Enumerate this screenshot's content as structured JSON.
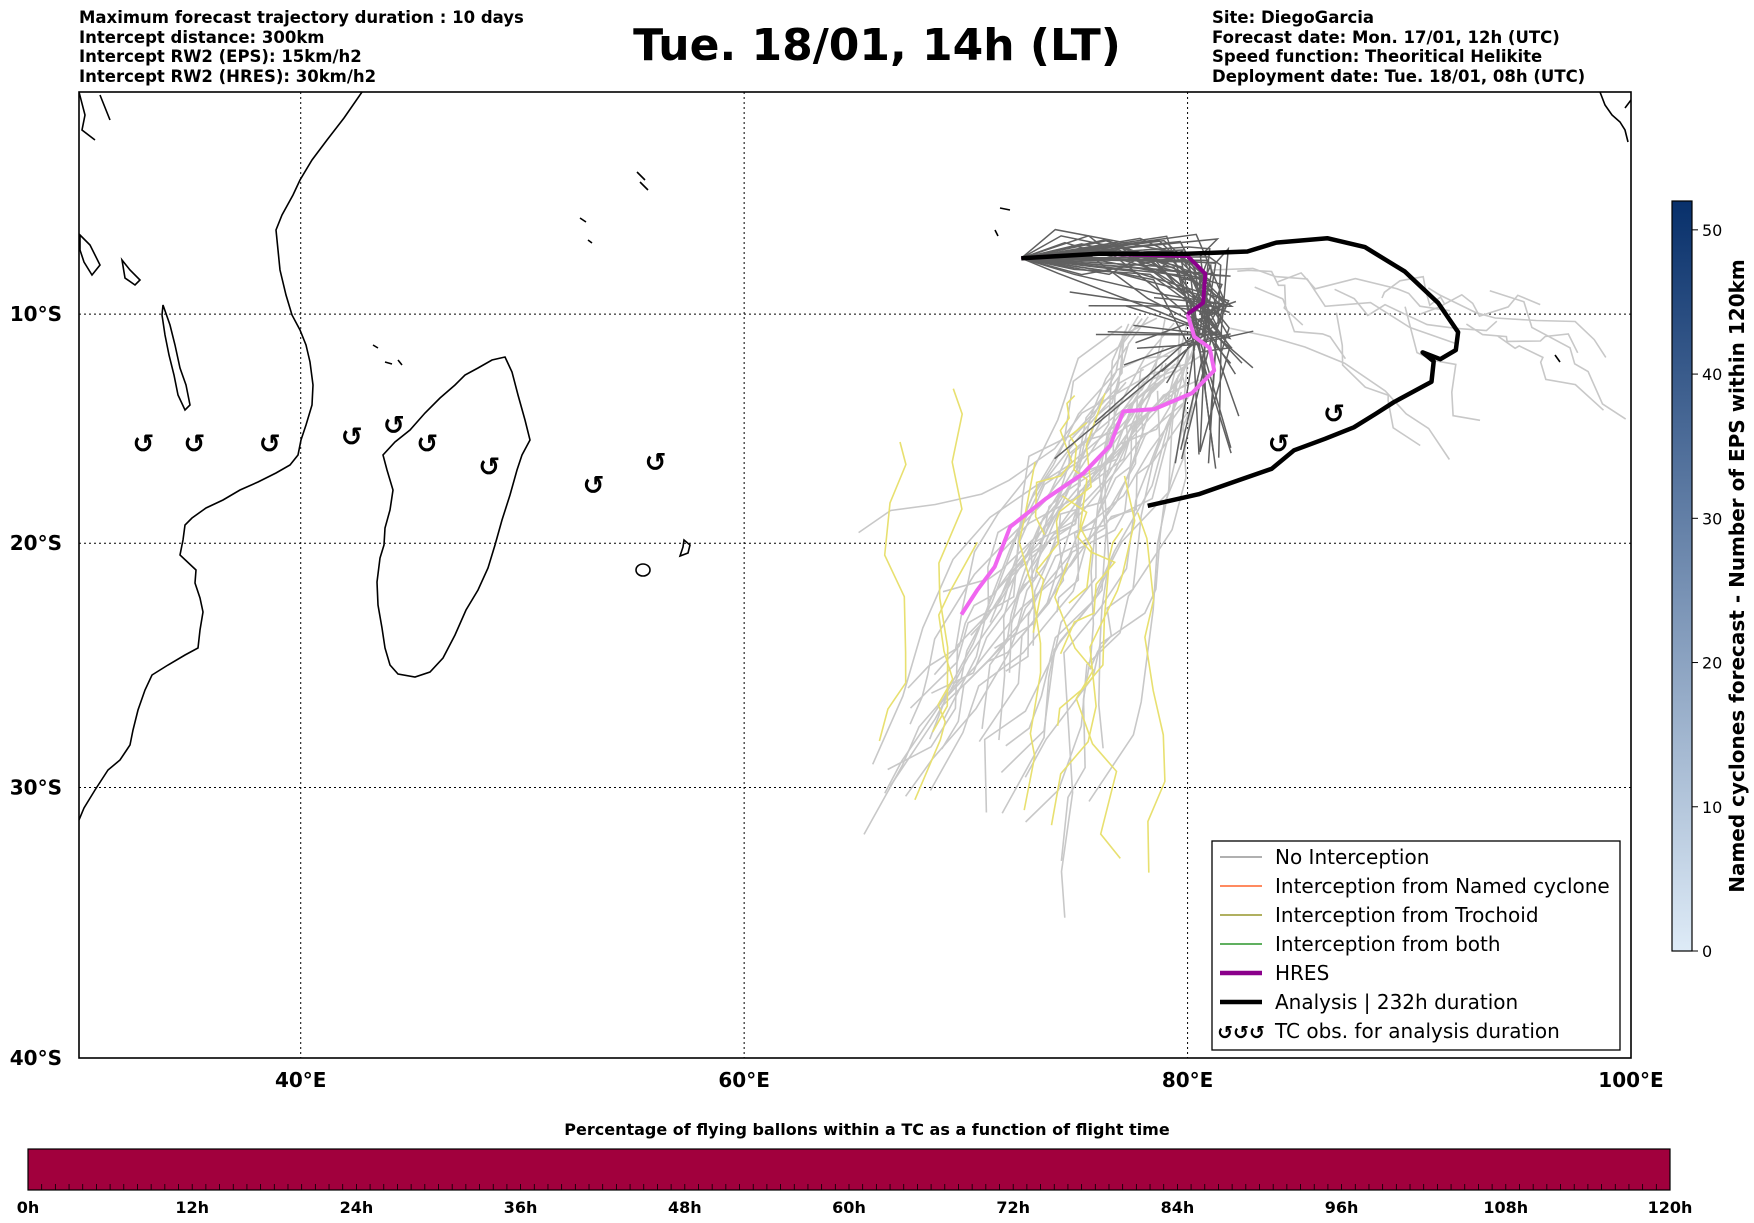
{
  "header_left": [
    "Maximum forecast trajectory duration : 10 days",
    "Intercept distance: 300km",
    "Intercept RW2 (EPS):  15km/h2",
    "Intercept RW2 (HRES): 30km/h2"
  ],
  "title": "Tue. 18/01, 14h (LT)",
  "header_right": [
    "Site: DiegoGarcia",
    "Forecast date: Mon. 17/01, 12h (UTC)",
    "Speed function: Theoritical Helikite",
    "Deployment date: Tue. 18/01, 08h (UTC)"
  ],
  "map": {
    "lon_range": [
      30,
      100
    ],
    "lat_range": [
      -40,
      0
    ],
    "lon_ticks": [
      "40°E",
      "60°E",
      "80°E",
      "100°E"
    ],
    "lat_ticks": [
      "10°S",
      "20°S",
      "30°S",
      "40°S"
    ]
  },
  "legend": [
    {
      "label": "No Interception",
      "color": "#808080",
      "style": "thin"
    },
    {
      "label": "Interception from Named cyclone",
      "color": "#ff4500",
      "style": "thin"
    },
    {
      "label": "Interception from Trochoid",
      "color": "#808000",
      "style": "thin"
    },
    {
      "label": "Interception from both",
      "color": "#008000",
      "style": "thin"
    },
    {
      "label": "HRES",
      "color": "#8b008b",
      "style": "thick"
    },
    {
      "label": "Analysis | 232h duration",
      "color": "#000000",
      "style": "thick"
    },
    {
      "label": "TC obs. for analysis duration",
      "color": "#000000",
      "style": "symbol",
      "symbol": "↺↺↺"
    }
  ],
  "colorbar_right": {
    "label": "Named cyclones forecast - Number of EPS within 120km",
    "ticks": [
      "0",
      "10",
      "20",
      "30",
      "40",
      "50"
    ],
    "max": 52,
    "colors": [
      "#deebf7",
      "#08306b"
    ]
  },
  "time_bar": {
    "title": "Percentage of flying ballons within a TC as a function of flight time",
    "ticks": [
      "0h",
      "12h",
      "24h",
      "36h",
      "48h",
      "60h",
      "72h",
      "84h",
      "96h",
      "108h",
      "120h"
    ],
    "color": "#a1003d"
  },
  "tracks": {
    "hres": [
      [
        72.5,
        -7.5
      ],
      [
        76,
        -7.3
      ],
      [
        80,
        -7.4
      ],
      [
        80.8,
        -8.2
      ],
      [
        80.7,
        -9.5
      ],
      [
        80.0,
        -10.0
      ],
      [
        80.3,
        -11.0
      ],
      [
        81.0,
        -11.5
      ],
      [
        81.2,
        -12.5
      ],
      [
        80.2,
        -13.5
      ],
      [
        78.5,
        -14.2
      ],
      [
        77.1,
        -14.3
      ],
      [
        76.5,
        -15.8
      ],
      [
        75.3,
        -17.0
      ],
      [
        73.6,
        -18.1
      ],
      [
        72.0,
        -19.3
      ],
      [
        71.3,
        -21.0
      ],
      [
        70.5,
        -22.0
      ],
      [
        69.8,
        -23.0
      ]
    ],
    "analysis": [
      [
        78.2,
        -18.4
      ],
      [
        80.5,
        -17.9
      ],
      [
        82.3,
        -17.3
      ],
      [
        83.8,
        -16.8
      ],
      [
        84.8,
        -16.0
      ],
      [
        86.2,
        -15.5
      ],
      [
        87.5,
        -15.0
      ],
      [
        88.5,
        -14.4
      ],
      [
        89.3,
        -13.9
      ],
      [
        91.0,
        -13.0
      ],
      [
        91.1,
        -12.1
      ],
      [
        90.6,
        -11.7
      ],
      [
        91.4,
        -12.0
      ],
      [
        92.1,
        -11.6
      ],
      [
        92.2,
        -10.8
      ],
      [
        91.3,
        -9.5
      ],
      [
        89.8,
        -8.1
      ],
      [
        88.0,
        -7.0
      ],
      [
        86.3,
        -6.6
      ],
      [
        84.0,
        -6.8
      ],
      [
        82.7,
        -7.2
      ],
      [
        80,
        -7.3
      ],
      [
        76,
        -7.3
      ],
      [
        72.5,
        -7.5
      ]
    ],
    "tc_obs": [
      [
        32.9,
        -15.7
      ],
      [
        35.2,
        -15.7
      ],
      [
        38.6,
        -15.7
      ],
      [
        42.3,
        -15.4
      ],
      [
        44.2,
        -14.9
      ],
      [
        45.7,
        -15.7
      ],
      [
        48.5,
        -16.7
      ],
      [
        53.2,
        -17.5
      ],
      [
        56.0,
        -16.5
      ],
      [
        84.1,
        -15.7
      ],
      [
        86.6,
        -14.4
      ]
    ],
    "tc_obs_symbol": "↺"
  }
}
